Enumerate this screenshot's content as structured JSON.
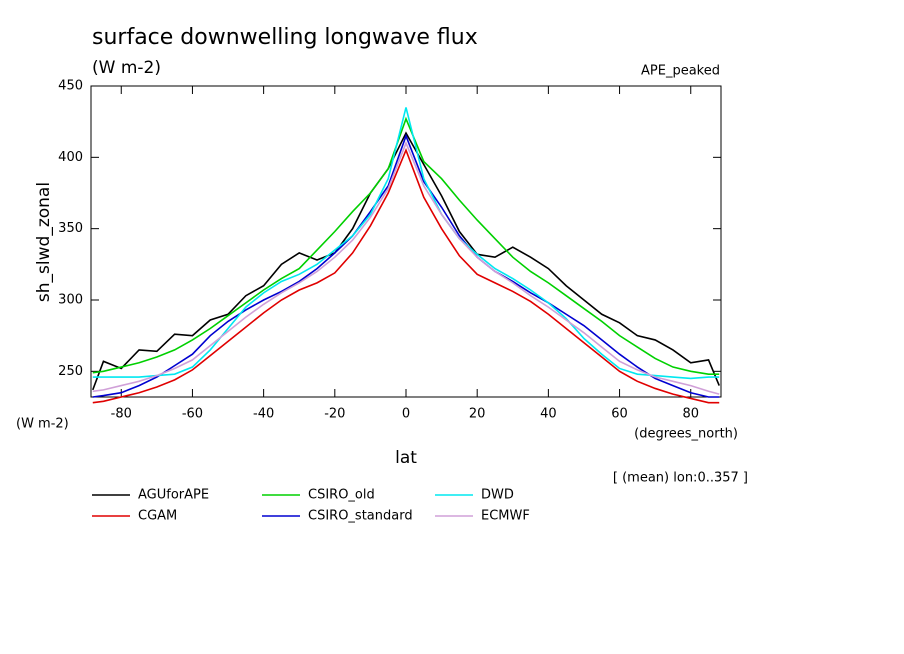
{
  "chart_data": {
    "type": "line",
    "title": "surface downwelling longwave flux",
    "subtitle": "(W m-2)",
    "experiment": "APE_peaked",
    "y_label": "sh_slwd_zonal",
    "y_units": "(W m-2)",
    "x_label": "lat",
    "x_units": "(degrees_north)",
    "note": "[ (mean) lon:0..357 ]",
    "xlim": [
      -88.5,
      88.5
    ],
    "ylim": [
      232,
      450
    ],
    "xticks": [
      -80,
      -60,
      -40,
      -20,
      0,
      20,
      40,
      60,
      80
    ],
    "yticks": [
      250,
      300,
      350,
      400,
      450
    ],
    "x": [
      -88,
      -85,
      -80,
      -75,
      -70,
      -65,
      -60,
      -55,
      -50,
      -45,
      -40,
      -35,
      -30,
      -25,
      -20,
      -15,
      -10,
      -5,
      0,
      5,
      10,
      15,
      20,
      25,
      30,
      35,
      40,
      45,
      50,
      55,
      60,
      65,
      70,
      75,
      80,
      85,
      88
    ],
    "series": [
      {
        "name": "AGUforAPE",
        "color": "#000000",
        "values": [
          237,
          257,
          252,
          265,
          264,
          276,
          275,
          286,
          290,
          303,
          310,
          325,
          333,
          328,
          333,
          350,
          375,
          392,
          417,
          395,
          373,
          348,
          332,
          330,
          337,
          330,
          322,
          310,
          300,
          290,
          284,
          275,
          272,
          265,
          256,
          258,
          240
        ]
      },
      {
        "name": "CGAM",
        "color": "#e00000",
        "values": [
          228,
          229,
          232,
          235,
          239,
          244,
          251,
          261,
          271,
          281,
          291,
          300,
          307,
          312,
          319,
          333,
          352,
          375,
          405,
          372,
          350,
          331,
          318,
          312,
          306,
          299,
          290,
          280,
          270,
          260,
          250,
          243,
          238,
          234,
          231,
          228,
          228
        ]
      },
      {
        "name": "CSIRO_old",
        "color": "#00d000",
        "values": [
          249,
          250,
          253,
          256,
          260,
          265,
          272,
          280,
          289,
          298,
          307,
          315,
          322,
          335,
          348,
          362,
          375,
          392,
          427,
          397,
          385,
          370,
          356,
          343,
          330,
          320,
          312,
          303,
          294,
          285,
          275,
          267,
          259,
          253,
          250,
          248,
          248
        ]
      },
      {
        "name": "CSIRO_standard",
        "color": "#0000d0",
        "values": [
          232,
          233,
          235,
          240,
          246,
          254,
          262,
          275,
          285,
          293,
          300,
          306,
          313,
          322,
          333,
          345,
          362,
          380,
          415,
          383,
          365,
          345,
          330,
          320,
          313,
          305,
          298,
          290,
          282,
          272,
          262,
          253,
          245,
          240,
          235,
          232,
          232
        ]
      },
      {
        "name": "DWD",
        "color": "#00e8f0",
        "values": [
          246,
          246,
          246,
          246,
          247,
          248,
          253,
          265,
          280,
          295,
          305,
          313,
          318,
          325,
          335,
          345,
          360,
          385,
          435,
          385,
          360,
          343,
          332,
          322,
          315,
          307,
          298,
          287,
          273,
          262,
          252,
          248,
          247,
          246,
          245,
          246,
          246
        ]
      },
      {
        "name": "ECMWF",
        "color": "#d0a0d8",
        "values": [
          236,
          237,
          240,
          243,
          247,
          252,
          258,
          268,
          278,
          288,
          297,
          305,
          312,
          320,
          330,
          342,
          358,
          378,
          410,
          380,
          360,
          343,
          330,
          320,
          312,
          303,
          295,
          286,
          277,
          267,
          257,
          251,
          246,
          243,
          240,
          236,
          234
        ]
      }
    ]
  }
}
